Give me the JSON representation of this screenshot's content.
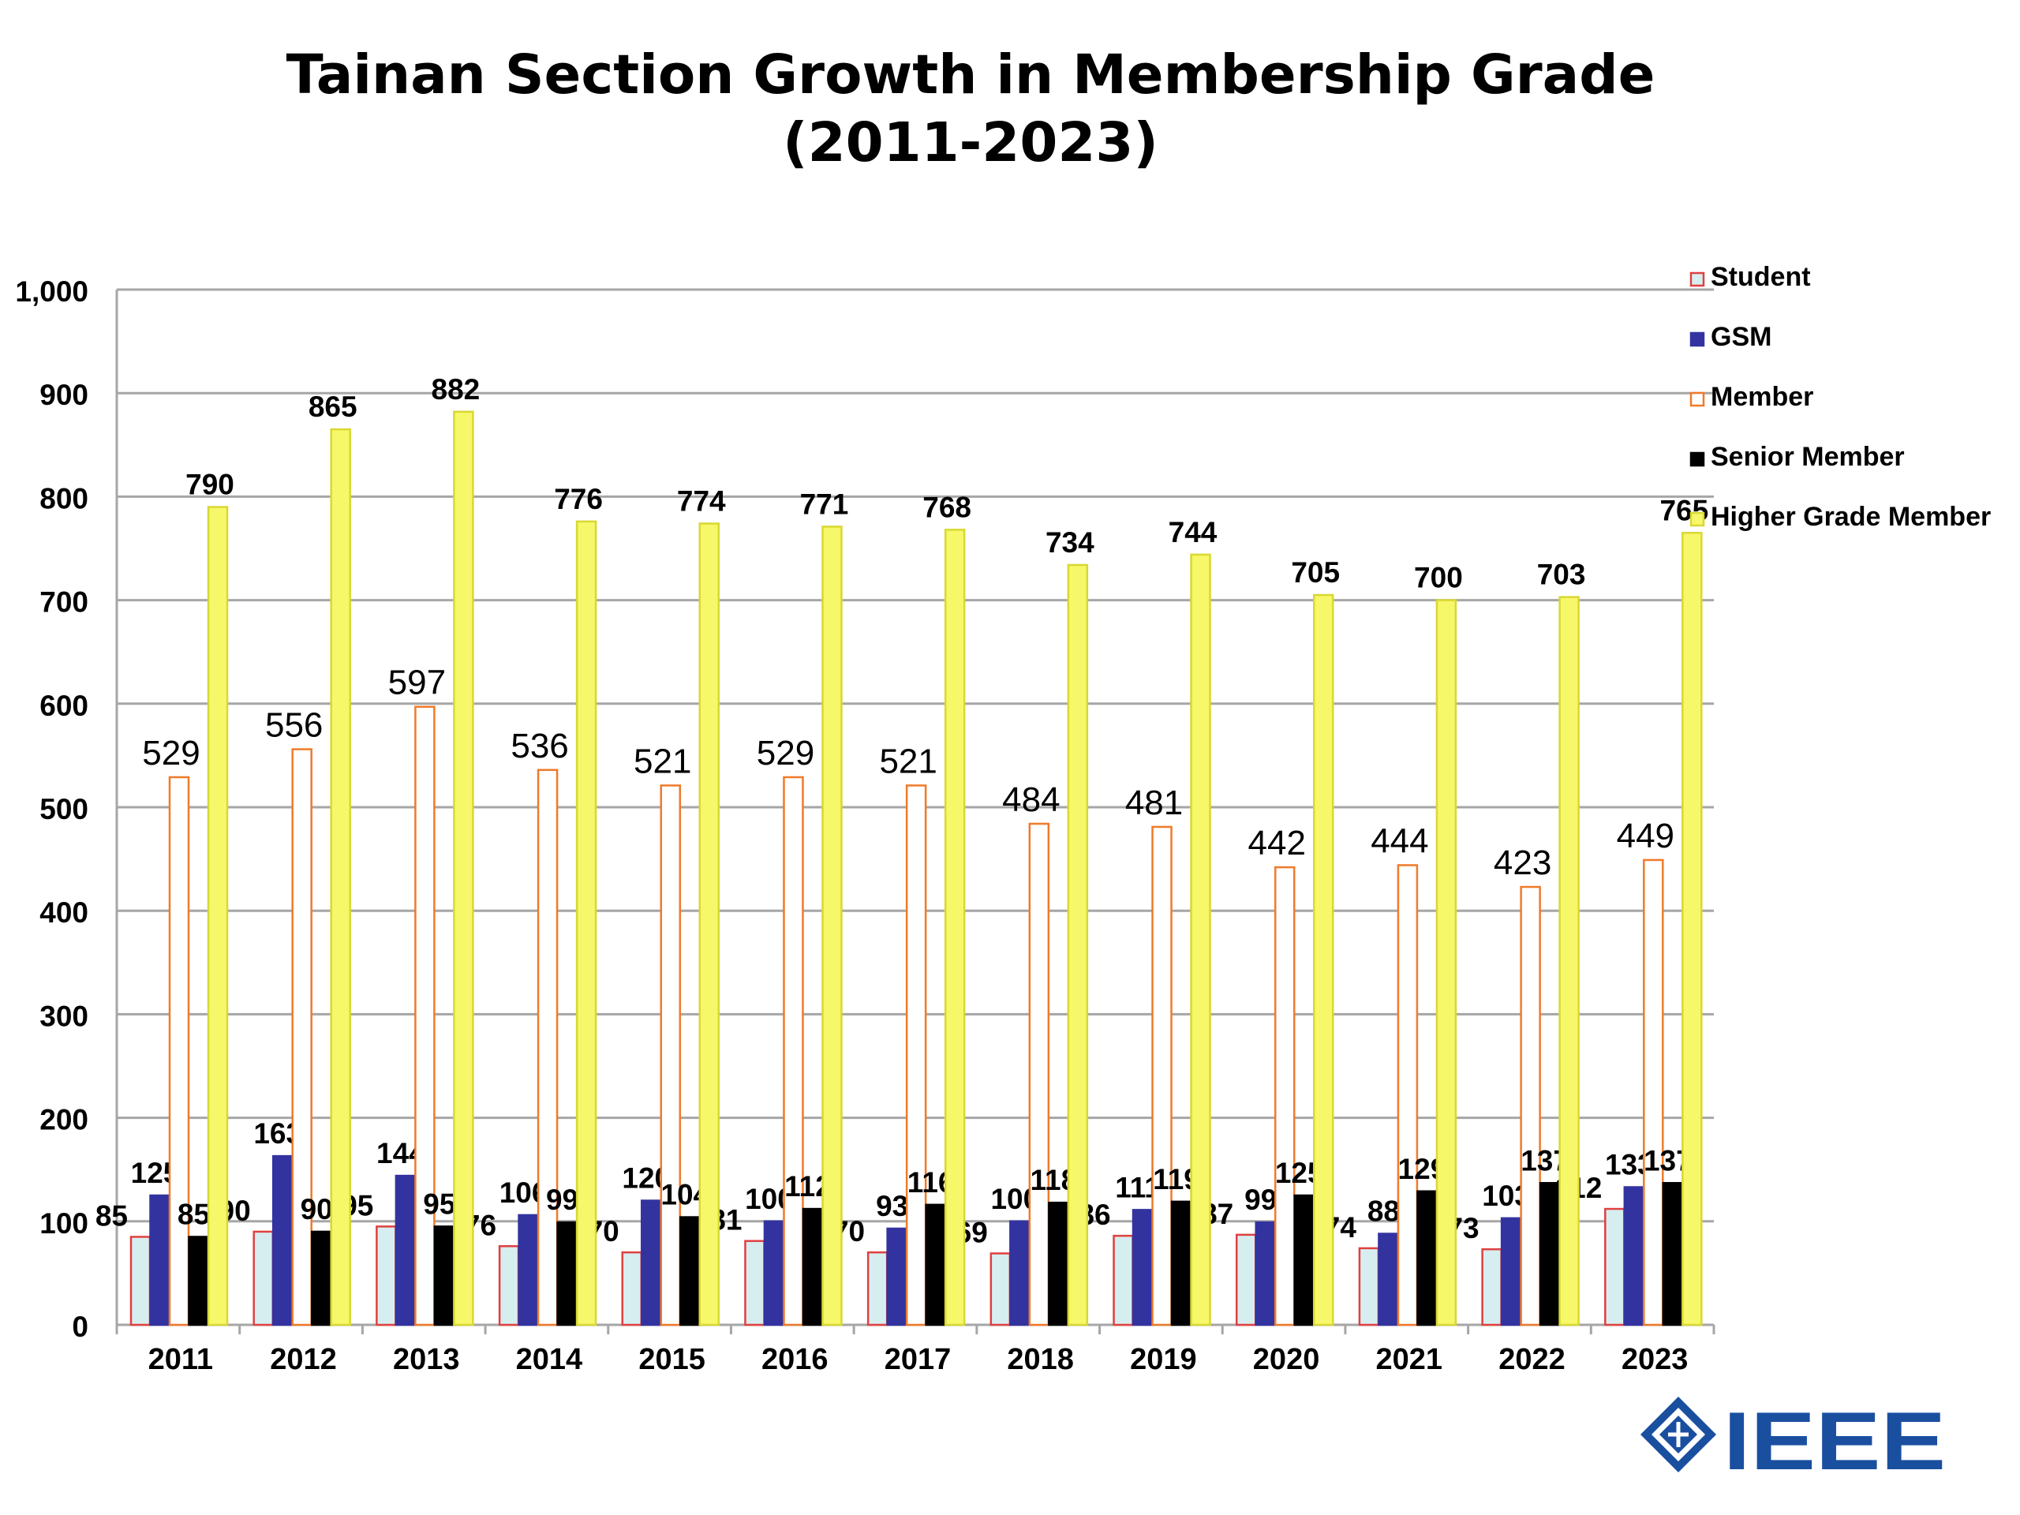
{
  "chart_data": {
    "type": "bar",
    "title": "Tainan Section Growth in Membership Grade",
    "subtitle": "(2011-2023)",
    "categories": [
      "2011",
      "2012",
      "2013",
      "2014",
      "2015",
      "2016",
      "2017",
      "2018",
      "2019",
      "2020",
      "2021",
      "2022",
      "2023"
    ],
    "ylim": [
      0,
      1000
    ],
    "yticks": [
      "0",
      "100",
      "200",
      "300",
      "400",
      "500",
      "600",
      "700",
      "800",
      "900",
      "1,000"
    ],
    "grid": true,
    "legend_position": "right",
    "series": [
      {
        "name": "Student",
        "values": [
          85,
          90,
          95,
          76,
          70,
          81,
          70,
          69,
          86,
          87,
          74,
          73,
          112
        ],
        "color": "#d7eef0",
        "stroke": "#e04040",
        "label_style": "bold"
      },
      {
        "name": "GSM",
        "values": [
          125,
          163,
          144,
          106,
          120,
          100,
          93,
          100,
          111,
          99,
          88,
          103,
          133
        ],
        "color": "#3333a0",
        "stroke": "#3333a0",
        "label_style": "bold"
      },
      {
        "name": "Member",
        "values": [
          529,
          556,
          597,
          536,
          521,
          529,
          521,
          484,
          481,
          442,
          444,
          423,
          449
        ],
        "color": "#ffffff",
        "stroke": "#f07a2a",
        "label_style": "normal"
      },
      {
        "name": "Senior Member",
        "values": [
          85,
          90,
          95,
          99,
          104,
          112,
          116,
          118,
          119,
          125,
          129,
          137,
          137
        ],
        "color": "#000000",
        "stroke": "#000000",
        "label_style": "bold"
      },
      {
        "name": "Higher Grade Member",
        "values": [
          790,
          865,
          882,
          776,
          774,
          771,
          768,
          734,
          744,
          705,
          700,
          703,
          765
        ],
        "color": "#f7f76a",
        "stroke": "#d8d832",
        "label_style": "bold"
      }
    ]
  },
  "logo": {
    "text": "IEEE",
    "color": "#1a4fa0"
  }
}
